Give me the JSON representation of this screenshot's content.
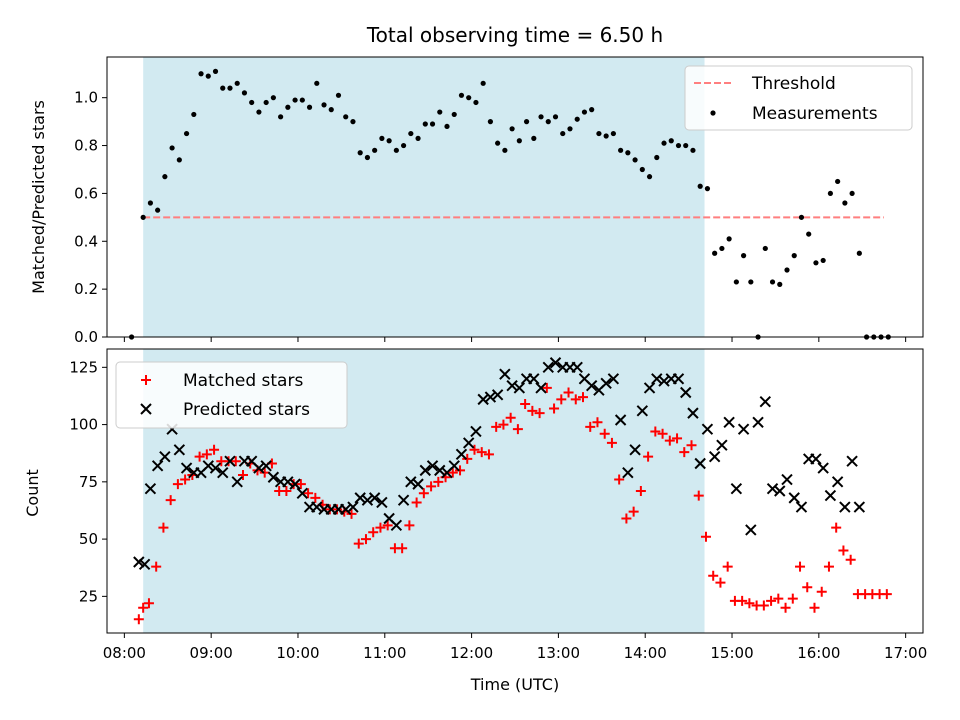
{
  "title": "Total observing time = 6.50 h",
  "chart_data": [
    {
      "type": "scatter",
      "ylabel": "Matched/Predicted stars",
      "ylim": [
        0.0,
        1.17
      ],
      "xlim": [
        "07:48",
        "17:12"
      ],
      "yticks": [
        "0.0",
        "0.2",
        "0.4",
        "0.6",
        "0.8",
        "1.0"
      ],
      "shaded_region": {
        "start": "08:13",
        "end": "14:41",
        "color": "#add8e6"
      },
      "threshold": {
        "name": "Threshold",
        "value": 0.5,
        "x_start": "08:13",
        "x_end": "16:45",
        "color": "#ff7f7f"
      },
      "legend": {
        "position": "top-right",
        "entries": [
          "Threshold",
          "Measurements"
        ]
      },
      "series": [
        {
          "name": "Measurements",
          "color": "#000000",
          "x": [
            "08:05",
            "08:13",
            "08:18",
            "08:23",
            "08:28",
            "08:33",
            "08:38",
            "08:43",
            "08:48",
            "08:53",
            "08:58",
            "09:03",
            "09:08",
            "09:13",
            "09:18",
            "09:23",
            "09:28",
            "09:33",
            "09:38",
            "09:43",
            "09:48",
            "09:53",
            "09:58",
            "10:03",
            "10:08",
            "10:13",
            "10:18",
            "10:23",
            "10:28",
            "10:33",
            "10:38",
            "10:43",
            "10:48",
            "10:53",
            "10:58",
            "11:03",
            "11:08",
            "11:13",
            "11:18",
            "11:23",
            "11:28",
            "11:33",
            "11:38",
            "11:43",
            "11:48",
            "11:53",
            "11:58",
            "12:03",
            "12:08",
            "12:13",
            "12:18",
            "12:23",
            "12:28",
            "12:33",
            "12:38",
            "12:43",
            "12:48",
            "12:53",
            "12:58",
            "13:03",
            "13:08",
            "13:13",
            "13:18",
            "13:23",
            "13:28",
            "13:33",
            "13:38",
            "13:43",
            "13:48",
            "13:53",
            "13:58",
            "14:03",
            "14:08",
            "14:13",
            "14:18",
            "14:23",
            "14:28",
            "14:33",
            "14:38",
            "14:43",
            "14:48",
            "14:53",
            "14:58",
            "15:03",
            "15:08",
            "15:13",
            "15:18",
            "15:23",
            "15:28",
            "15:33",
            "15:38",
            "15:43",
            "15:48",
            "15:53",
            "15:58",
            "16:03",
            "16:08",
            "16:13",
            "16:18",
            "16:23",
            "16:28",
            "16:33",
            "16:38",
            "16:43",
            "16:48"
          ],
          "values": [
            0.0,
            0.5,
            0.56,
            0.53,
            0.67,
            0.79,
            0.74,
            0.85,
            0.93,
            1.1,
            1.09,
            1.11,
            1.04,
            1.04,
            1.06,
            1.02,
            0.98,
            0.94,
            0.98,
            1.0,
            0.92,
            0.96,
            0.99,
            0.99,
            0.96,
            1.06,
            0.97,
            0.95,
            1.01,
            0.92,
            0.9,
            0.77,
            0.75,
            0.78,
            0.83,
            0.82,
            0.78,
            0.8,
            0.85,
            0.83,
            0.89,
            0.89,
            0.94,
            0.88,
            0.93,
            1.01,
            1.0,
            0.98,
            1.06,
            0.9,
            0.81,
            0.78,
            0.87,
            0.82,
            0.9,
            0.83,
            0.92,
            0.9,
            0.92,
            0.85,
            0.87,
            0.91,
            0.94,
            0.95,
            0.85,
            0.84,
            0.85,
            0.78,
            0.77,
            0.74,
            0.7,
            0.67,
            0.75,
            0.81,
            0.82,
            0.8,
            0.8,
            0.78,
            0.63,
            0.62,
            0.35,
            0.37,
            0.41,
            0.23,
            0.34,
            0.23,
            0.0,
            0.37,
            0.23,
            0.22,
            0.28,
            0.34,
            0.5,
            0.43,
            0.31,
            0.32,
            0.6,
            0.65,
            0.56,
            0.6,
            0.35,
            0.0,
            0.0,
            0.0,
            0.0
          ]
        }
      ]
    },
    {
      "type": "scatter",
      "xlabel": "Time (UTC)",
      "ylabel": "Count",
      "ylim": [
        9,
        133
      ],
      "xlim": [
        "07:48",
        "17:12"
      ],
      "xticks": [
        "08:00",
        "09:00",
        "10:00",
        "11:00",
        "12:00",
        "13:00",
        "14:00",
        "15:00",
        "16:00",
        "17:00"
      ],
      "yticks": [
        "25",
        "50",
        "75",
        "100",
        "125"
      ],
      "shaded_region": {
        "start": "08:13",
        "end": "14:41",
        "color": "#add8e6"
      },
      "legend": {
        "position": "top-left",
        "entries": [
          "Matched stars",
          "Predicted stars"
        ]
      },
      "series": [
        {
          "name": "Matched stars",
          "marker": "+",
          "color": "#ff0000",
          "x": [
            "08:10",
            "08:13",
            "08:17",
            "08:22",
            "08:27",
            "08:32",
            "08:37",
            "08:42",
            "08:47",
            "08:52",
            "08:57",
            "09:02",
            "09:07",
            "09:12",
            "09:17",
            "09:22",
            "09:27",
            "09:32",
            "09:37",
            "09:42",
            "09:47",
            "09:52",
            "09:57",
            "10:02",
            "10:07",
            "10:12",
            "10:17",
            "10:22",
            "10:27",
            "10:32",
            "10:37",
            "10:42",
            "10:47",
            "10:52",
            "10:57",
            "11:02",
            "11:07",
            "11:12",
            "11:17",
            "11:22",
            "11:27",
            "11:32",
            "11:37",
            "11:42",
            "11:47",
            "11:52",
            "11:57",
            "12:02",
            "12:07",
            "12:12",
            "12:17",
            "12:22",
            "12:27",
            "12:32",
            "12:37",
            "12:42",
            "12:47",
            "12:52",
            "12:57",
            "13:02",
            "13:07",
            "13:12",
            "13:17",
            "13:22",
            "13:27",
            "13:32",
            "13:37",
            "13:42",
            "13:47",
            "13:52",
            "13:57",
            "14:02",
            "14:07",
            "14:12",
            "14:17",
            "14:22",
            "14:27",
            "14:32",
            "14:37",
            "14:42",
            "14:47",
            "14:52",
            "14:57",
            "15:02",
            "15:07",
            "15:12",
            "15:17",
            "15:22",
            "15:27",
            "15:32",
            "15:37",
            "15:42",
            "15:47",
            "15:52",
            "15:57",
            "16:02",
            "16:07",
            "16:12",
            "16:17",
            "16:22",
            "16:27",
            "16:32",
            "16:37",
            "16:42",
            "16:47"
          ],
          "values": [
            15,
            20,
            22,
            38,
            55,
            67,
            74,
            76,
            78,
            86,
            87,
            89,
            84,
            84,
            84,
            78,
            83,
            80,
            79,
            83,
            71,
            71,
            74,
            74,
            70,
            68,
            65,
            63,
            63,
            62,
            61,
            48,
            50,
            53,
            55,
            56,
            46,
            46,
            56,
            66,
            70,
            73,
            75,
            77,
            79,
            80,
            85,
            89,
            88,
            87,
            99,
            100,
            103,
            98,
            109,
            106,
            105,
            116,
            107,
            111,
            114,
            111,
            112,
            99,
            101,
            96,
            92,
            76,
            59,
            62,
            71,
            86,
            97,
            96,
            93,
            94,
            88,
            91,
            69,
            51,
            34,
            31,
            38,
            23,
            23,
            22,
            21,
            21,
            23,
            24,
            20,
            24,
            38,
            29,
            20,
            27,
            38,
            55,
            45,
            41,
            26,
            26,
            26,
            26,
            26
          ]
        },
        {
          "name": "Predicted stars",
          "marker": "x",
          "color": "#000000",
          "x": [
            "08:10",
            "08:14",
            "08:18",
            "08:23",
            "08:28",
            "08:33",
            "08:38",
            "08:43",
            "08:48",
            "08:53",
            "08:58",
            "09:03",
            "09:08",
            "09:13",
            "09:18",
            "09:23",
            "09:28",
            "09:33",
            "09:38",
            "09:43",
            "09:48",
            "09:53",
            "09:58",
            "10:03",
            "10:08",
            "10:13",
            "10:18",
            "10:23",
            "10:28",
            "10:33",
            "10:38",
            "10:43",
            "10:48",
            "10:53",
            "10:58",
            "11:03",
            "11:08",
            "11:13",
            "11:18",
            "11:23",
            "11:28",
            "11:33",
            "11:38",
            "11:43",
            "11:48",
            "11:53",
            "11:58",
            "12:03",
            "12:08",
            "12:13",
            "12:18",
            "12:23",
            "12:28",
            "12:33",
            "12:38",
            "12:43",
            "12:48",
            "12:53",
            "12:58",
            "13:03",
            "13:08",
            "13:13",
            "13:18",
            "13:23",
            "13:28",
            "13:33",
            "13:38",
            "13:43",
            "13:48",
            "13:53",
            "13:58",
            "14:03",
            "14:08",
            "14:13",
            "14:18",
            "14:23",
            "14:28",
            "14:33",
            "14:38",
            "14:43",
            "14:48",
            "14:53",
            "14:58",
            "15:03",
            "15:08",
            "15:13",
            "15:18",
            "15:23",
            "15:28",
            "15:33",
            "15:38",
            "15:43",
            "15:48",
            "15:53",
            "15:58",
            "16:03",
            "16:08",
            "16:13",
            "16:18",
            "16:23",
            "16:28"
          ],
          "values": [
            40,
            39,
            72,
            82,
            86,
            98,
            89,
            81,
            79,
            79,
            82,
            81,
            79,
            84,
            75,
            84,
            84,
            81,
            82,
            77,
            75,
            75,
            74,
            70,
            64,
            64,
            63,
            63,
            63,
            63,
            64,
            68,
            67,
            68,
            66,
            59,
            56,
            67,
            75,
            74,
            80,
            82,
            80,
            79,
            82,
            87,
            92,
            97,
            111,
            112,
            113,
            122,
            117,
            116,
            120,
            120,
            116,
            125,
            127,
            125,
            125,
            125,
            120,
            117,
            115,
            118,
            120,
            102,
            79,
            89,
            106,
            116,
            120,
            119,
            120,
            120,
            114,
            105,
            83,
            98,
            86,
            91,
            101,
            72,
            98,
            54,
            101,
            110,
            72,
            71,
            76,
            68,
            64,
            85,
            85,
            81,
            69,
            75,
            64,
            84,
            64
          ]
        }
      ]
    }
  ]
}
